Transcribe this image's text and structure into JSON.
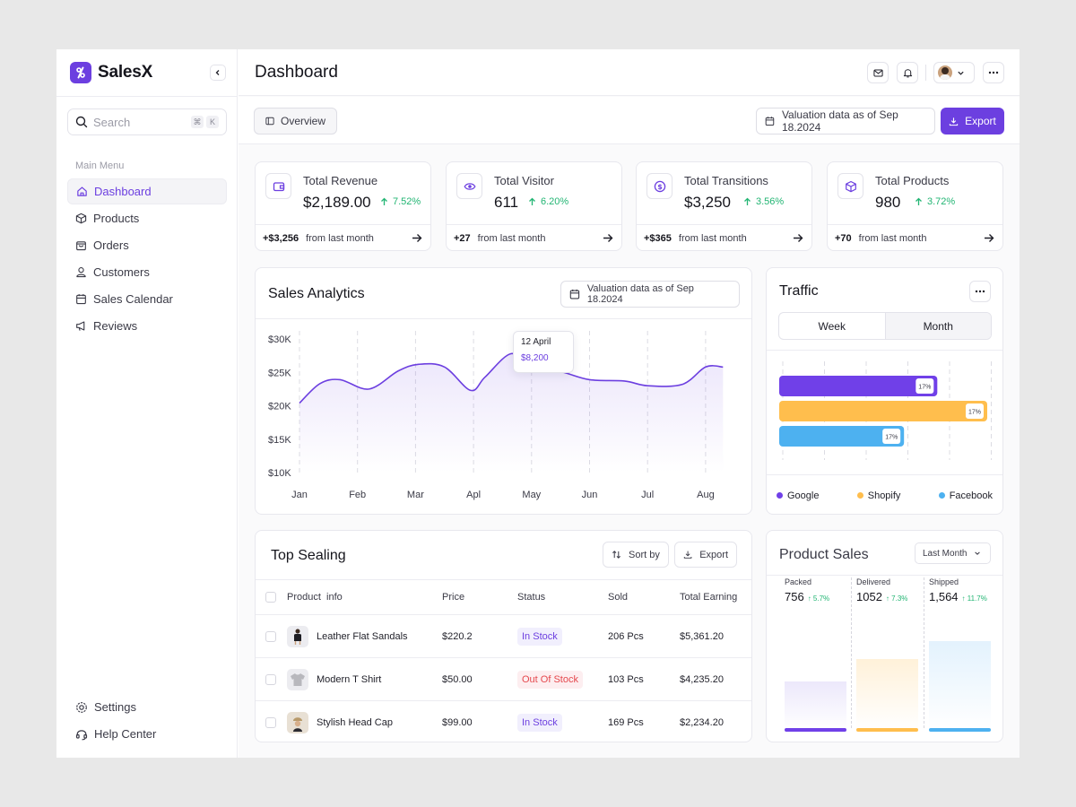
{
  "app": {
    "name": "SalesX"
  },
  "sidebar": {
    "search_placeholder": "Search",
    "kbd1": "⌘",
    "kbd2": "K",
    "menu_title": "Main Menu",
    "items": [
      {
        "label": "Dashboard",
        "icon": "home-icon"
      },
      {
        "label": "Products",
        "icon": "box-icon"
      },
      {
        "label": "Orders",
        "icon": "bag-icon"
      },
      {
        "label": "Customers",
        "icon": "user-icon"
      },
      {
        "label": "Sales Calendar",
        "icon": "calendar-icon"
      },
      {
        "label": "Reviews",
        "icon": "megaphone-icon"
      }
    ],
    "bottom": [
      {
        "label": "Settings",
        "icon": "gear-icon"
      },
      {
        "label": "Help Center",
        "icon": "headset-icon"
      }
    ]
  },
  "header": {
    "title": "Dashboard"
  },
  "subbar": {
    "overview_label": "Overview",
    "valuation_label": "Valuation data as of Sep 18.2024",
    "export_label": "Export"
  },
  "stats": [
    {
      "title": "Total Revenue",
      "value": "$2,189.00",
      "change": "7.52%",
      "delta": "+$3,256",
      "foot": "from last month"
    },
    {
      "title": "Total Visitor",
      "value": "611",
      "change": "6.20%",
      "delta": "+27",
      "foot": "from last month"
    },
    {
      "title": "Total Transitions",
      "value": "$3,250",
      "change": "3.56%",
      "delta": "+$365",
      "foot": "from last month"
    },
    {
      "title": "Total Products",
      "value": "980",
      "change": "3.72%",
      "delta": "+70",
      "foot": "from last month"
    }
  ],
  "sales_analytics": {
    "title": "Sales Analytics",
    "valuation_label": "Valuation data as of Sep 18.2024",
    "tooltip_date": "12 April",
    "tooltip_value": "$8,200"
  },
  "chart_data": {
    "type": "area",
    "title": "Sales Analytics",
    "categories": [
      "Jan",
      "Feb",
      "Mar",
      "Apl",
      "May",
      "Jun",
      "Jul",
      "Aug"
    ],
    "y_ticks": [
      "$30K",
      "$25K",
      "$20K",
      "$15K",
      "$10K"
    ],
    "ylim": [
      10000,
      30000
    ],
    "x": [
      0,
      0.35,
      0.7,
      1.2,
      1.7,
      2.05,
      2.5,
      2.95,
      3.2,
      3.65,
      4.0,
      4.5,
      5.0,
      5.6,
      6.0,
      6.6,
      7.0,
      7.3
    ],
    "values": [
      20400,
      23300,
      23900,
      22500,
      25200,
      26200,
      25800,
      22300,
      24300,
      27800,
      25600,
      25100,
      23900,
      23700,
      23000,
      23200,
      25800,
      25800
    ],
    "series_color": "#6c3fe0"
  },
  "traffic": {
    "title": "Traffic",
    "tabs": [
      "Week",
      "Month"
    ],
    "bars": [
      {
        "name": "Google",
        "label": "17%",
        "value": 0.76,
        "color": "#7040e8"
      },
      {
        "name": "Shopify",
        "label": "17%",
        "value": 1.0,
        "color": "#ffbe4d"
      },
      {
        "name": "Facebook",
        "label": "17%",
        "value": 0.6,
        "color": "#4db1f0"
      }
    ]
  },
  "top_selling": {
    "title": "Top Sealing",
    "sort_label": "Sort by",
    "export_label": "Export",
    "columns": [
      "Product  info",
      "Price",
      "Status",
      "Sold",
      "Total Earning"
    ],
    "rows": [
      {
        "name": "Leather Flat Sandals",
        "price": "$220.2",
        "status": "In Stock",
        "sold": "206 Pcs",
        "earning": "$5,361.20"
      },
      {
        "name": "Modern T Shirt",
        "price": "$50.00",
        "status": "Out Of Stock",
        "sold": "103 Pcs",
        "earning": "$4,235.20"
      },
      {
        "name": "Stylish Head Cap",
        "price": "$99.00",
        "status": "In Stock",
        "sold": "169 Pcs",
        "earning": "$2,234.20"
      }
    ]
  },
  "product_sales": {
    "title": "Product Sales",
    "filter": "Last Month",
    "columns": [
      {
        "label": "Packed",
        "value": "756",
        "change": "5.7%",
        "fill": 0.36,
        "color": "#7040e8",
        "bg": "#ece8fb"
      },
      {
        "label": "Delivered",
        "value": "1052",
        "change": "7.3%",
        "fill": 0.53,
        "color": "#ffbe4d",
        "bg": "#fff1d9"
      },
      {
        "label": "Shipped",
        "value": "1,564",
        "change": "11.7%",
        "fill": 0.66,
        "color": "#4db1f0",
        "bg": "#e3f2fd"
      }
    ]
  }
}
